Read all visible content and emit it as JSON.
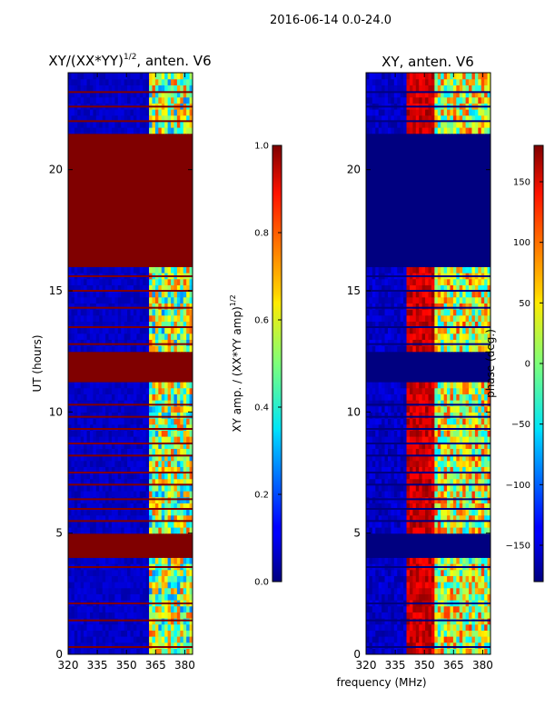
{
  "figure": {
    "suptitle": "2016-06-14 0.0-24.0",
    "shared_xlabel": "frequency (MHz)"
  },
  "chart_data": [
    {
      "type": "heatmap",
      "id": "amplitude",
      "title": "XY/(XX*YY)",
      "title_superscript": "1/2",
      "title_suffix": ", anten. V6",
      "xlabel": "frequency (MHz)",
      "ylabel": "UT (hours)",
      "xlim": [
        320,
        384
      ],
      "ylim": [
        0,
        24
      ],
      "xticks": [
        320,
        335,
        350,
        365,
        380
      ],
      "yticks": [
        0,
        5,
        10,
        15,
        20
      ],
      "colorbar": {
        "label": "XY amp. / (XX*YY amp)",
        "label_superscript": "1/2",
        "range": [
          0.0,
          1.0
        ],
        "ticks": [
          "0.0",
          "0.2",
          "0.4",
          "0.6",
          "0.8",
          "1.0"
        ],
        "tick_values": [
          0.0,
          0.2,
          0.4,
          0.6,
          0.8,
          1.0
        ]
      },
      "flagged_bands_hours": [
        [
          0.0,
          0.1
        ],
        [
          3.9,
          4.9
        ],
        [
          11.2,
          12.5
        ],
        [
          16.0,
          21.5
        ]
      ],
      "flagged_lines_hours": [
        0.3,
        1.4,
        2.1,
        3.6,
        5.5,
        6.0,
        6.4,
        7.0,
        7.5,
        8.2,
        8.7,
        9.3,
        9.8,
        10.3,
        12.8,
        13.5,
        14.3,
        15.0,
        15.6,
        22.0,
        22.6,
        23.2
      ],
      "description": "Low amplitude (~0.05) across 320-361 MHz, elevated 0.3-0.8 in 361-382 MHz; flagged time ranges = 1.0"
    },
    {
      "type": "heatmap",
      "id": "phase",
      "title": "XY, anten. V6",
      "xlabel": "frequency (MHz)",
      "ylabel": "",
      "xlim": [
        320,
        384
      ],
      "ylim": [
        0,
        24
      ],
      "xticks": [
        320,
        335,
        350,
        365,
        380
      ],
      "yticks": [
        0,
        5,
        10,
        15,
        20
      ],
      "colorbar": {
        "label": "phase (deg.)",
        "range": [
          -180,
          180
        ],
        "ticks": [
          "−150",
          "−100",
          "−50",
          "0",
          "50",
          "100",
          "150"
        ],
        "tick_values": [
          -150,
          -100,
          -50,
          0,
          50,
          100,
          150
        ]
      },
      "flagged_bands_hours": [
        [
          3.9,
          4.9
        ],
        [
          11.2,
          12.5
        ],
        [
          16.0,
          21.5
        ]
      ],
      "flagged_lines_hours": [
        0.3,
        1.4,
        2.1,
        3.6,
        5.5,
        6.0,
        6.4,
        7.0,
        7.5,
        8.2,
        8.7,
        9.3,
        9.8,
        10.3,
        12.8,
        13.5,
        14.3,
        15.0,
        15.6,
        22.0,
        22.6,
        23.2
      ],
      "description": "Phase ~ -170 deg (blue) in 320-341 MHz, ~ +160 deg (red) in 341-356 MHz, mixed -40..+100 deg in 356-384 MHz; flagged time ranges = -180"
    }
  ]
}
